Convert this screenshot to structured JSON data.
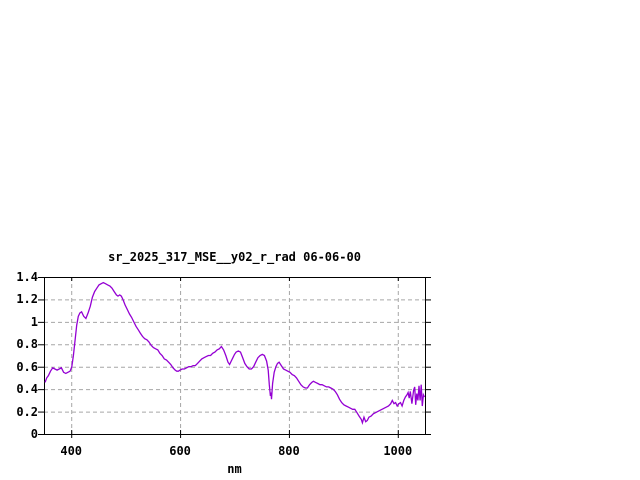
{
  "chart": {
    "title": "sr_2025_317_MSE__y02_r_rad 06-06-00",
    "xlabel": "nm",
    "colors": {
      "line": "#9400d3",
      "grid": "#a6a6a6",
      "border": "#000000",
      "background": "#ffffff"
    }
  },
  "chart_data": {
    "type": "line",
    "title": "sr_2025_317_MSE__y02_r_rad 06-06-00",
    "xlabel": "nm",
    "ylabel": "",
    "xlim": [
      350,
      1050
    ],
    "ylim": [
      0,
      1.4
    ],
    "xticks": [
      400,
      600,
      800,
      1000
    ],
    "xtick_labels": [
      "400",
      "600",
      "800",
      "1000"
    ],
    "yticks": [
      0,
      0.2,
      0.4,
      0.6,
      0.8,
      1.0,
      1.2,
      1.4
    ],
    "ytick_labels": [
      "0",
      "0.2",
      "0.4",
      "0.6",
      "0.8",
      "1",
      "1.2",
      "1.4"
    ],
    "grid": true,
    "legend": false,
    "line_color": "#9400d3",
    "points": [
      [
        352,
        0.46
      ],
      [
        355,
        0.5
      ],
      [
        358,
        0.52
      ],
      [
        362,
        0.56
      ],
      [
        366,
        0.59
      ],
      [
        370,
        0.58
      ],
      [
        374,
        0.57
      ],
      [
        378,
        0.58
      ],
      [
        382,
        0.59
      ],
      [
        386,
        0.55
      ],
      [
        390,
        0.54
      ],
      [
        394,
        0.55
      ],
      [
        398,
        0.56
      ],
      [
        401,
        0.6
      ],
      [
        404,
        0.7
      ],
      [
        407,
        0.83
      ],
      [
        410,
        0.97
      ],
      [
        413,
        1.05
      ],
      [
        416,
        1.08
      ],
      [
        419,
        1.09
      ],
      [
        423,
        1.05
      ],
      [
        427,
        1.03
      ],
      [
        431,
        1.08
      ],
      [
        435,
        1.14
      ],
      [
        439,
        1.22
      ],
      [
        443,
        1.27
      ],
      [
        447,
        1.3
      ],
      [
        451,
        1.33
      ],
      [
        455,
        1.34
      ],
      [
        459,
        1.35
      ],
      [
        463,
        1.34
      ],
      [
        467,
        1.33
      ],
      [
        471,
        1.32
      ],
      [
        475,
        1.3
      ],
      [
        479,
        1.27
      ],
      [
        483,
        1.24
      ],
      [
        486,
        1.23
      ],
      [
        489,
        1.24
      ],
      [
        492,
        1.23
      ],
      [
        495,
        1.2
      ],
      [
        499,
        1.15
      ],
      [
        503,
        1.11
      ],
      [
        507,
        1.07
      ],
      [
        511,
        1.04
      ],
      [
        515,
        1.0
      ],
      [
        519,
        0.96
      ],
      [
        523,
        0.93
      ],
      [
        527,
        0.9
      ],
      [
        531,
        0.87
      ],
      [
        535,
        0.85
      ],
      [
        539,
        0.84
      ],
      [
        543,
        0.82
      ],
      [
        547,
        0.79
      ],
      [
        551,
        0.77
      ],
      [
        555,
        0.76
      ],
      [
        559,
        0.75
      ],
      [
        563,
        0.72
      ],
      [
        567,
        0.7
      ],
      [
        571,
        0.67
      ],
      [
        575,
        0.66
      ],
      [
        579,
        0.64
      ],
      [
        583,
        0.62
      ],
      [
        587,
        0.59
      ],
      [
        591,
        0.57
      ],
      [
        594,
        0.56
      ],
      [
        597,
        0.56
      ],
      [
        600,
        0.57
      ],
      [
        604,
        0.58
      ],
      [
        608,
        0.58
      ],
      [
        612,
        0.59
      ],
      [
        616,
        0.6
      ],
      [
        620,
        0.6
      ],
      [
        624,
        0.61
      ],
      [
        628,
        0.61
      ],
      [
        632,
        0.63
      ],
      [
        636,
        0.65
      ],
      [
        640,
        0.67
      ],
      [
        644,
        0.68
      ],
      [
        648,
        0.69
      ],
      [
        652,
        0.7
      ],
      [
        656,
        0.7
      ],
      [
        660,
        0.72
      ],
      [
        664,
        0.73
      ],
      [
        668,
        0.75
      ],
      [
        672,
        0.76
      ],
      [
        676,
        0.78
      ],
      [
        680,
        0.75
      ],
      [
        684,
        0.7
      ],
      [
        688,
        0.64
      ],
      [
        691,
        0.62
      ],
      [
        694,
        0.65
      ],
      [
        697,
        0.68
      ],
      [
        700,
        0.71
      ],
      [
        703,
        0.73
      ],
      [
        707,
        0.74
      ],
      [
        711,
        0.73
      ],
      [
        715,
        0.68
      ],
      [
        719,
        0.63
      ],
      [
        723,
        0.6
      ],
      [
        727,
        0.58
      ],
      [
        731,
        0.58
      ],
      [
        735,
        0.6
      ],
      [
        739,
        0.64
      ],
      [
        743,
        0.68
      ],
      [
        747,
        0.7
      ],
      [
        751,
        0.71
      ],
      [
        755,
        0.7
      ],
      [
        759,
        0.65
      ],
      [
        762,
        0.57
      ],
      [
        764,
        0.44
      ],
      [
        766,
        0.34
      ],
      [
        767,
        0.37
      ],
      [
        768,
        0.31
      ],
      [
        770,
        0.45
      ],
      [
        773,
        0.55
      ],
      [
        776,
        0.6
      ],
      [
        779,
        0.63
      ],
      [
        782,
        0.64
      ],
      [
        786,
        0.61
      ],
      [
        790,
        0.58
      ],
      [
        794,
        0.57
      ],
      [
        798,
        0.56
      ],
      [
        802,
        0.55
      ],
      [
        806,
        0.53
      ],
      [
        810,
        0.52
      ],
      [
        814,
        0.5
      ],
      [
        818,
        0.47
      ],
      [
        822,
        0.44
      ],
      [
        826,
        0.42
      ],
      [
        830,
        0.41
      ],
      [
        834,
        0.41
      ],
      [
        838,
        0.44
      ],
      [
        842,
        0.46
      ],
      [
        845,
        0.47
      ],
      [
        849,
        0.46
      ],
      [
        853,
        0.45
      ],
      [
        857,
        0.44
      ],
      [
        861,
        0.44
      ],
      [
        865,
        0.43
      ],
      [
        869,
        0.42
      ],
      [
        873,
        0.42
      ],
      [
        877,
        0.41
      ],
      [
        881,
        0.4
      ],
      [
        885,
        0.38
      ],
      [
        889,
        0.35
      ],
      [
        893,
        0.31
      ],
      [
        897,
        0.28
      ],
      [
        901,
        0.26
      ],
      [
        905,
        0.25
      ],
      [
        909,
        0.24
      ],
      [
        913,
        0.23
      ],
      [
        917,
        0.22
      ],
      [
        921,
        0.22
      ],
      [
        925,
        0.19
      ],
      [
        929,
        0.16
      ],
      [
        933,
        0.13
      ],
      [
        935,
        0.1
      ],
      [
        938,
        0.15
      ],
      [
        941,
        0.11
      ],
      [
        944,
        0.12
      ],
      [
        947,
        0.15
      ],
      [
        951,
        0.16
      ],
      [
        955,
        0.18
      ],
      [
        959,
        0.19
      ],
      [
        963,
        0.2
      ],
      [
        967,
        0.21
      ],
      [
        971,
        0.22
      ],
      [
        975,
        0.23
      ],
      [
        979,
        0.24
      ],
      [
        983,
        0.25
      ],
      [
        987,
        0.27
      ],
      [
        990,
        0.3
      ],
      [
        993,
        0.27
      ],
      [
        996,
        0.28
      ],
      [
        999,
        0.25
      ],
      [
        1002,
        0.27
      ],
      [
        1005,
        0.28
      ],
      [
        1008,
        0.25
      ],
      [
        1011,
        0.3
      ],
      [
        1014,
        0.33
      ],
      [
        1017,
        0.35
      ],
      [
        1019,
        0.37
      ],
      [
        1021,
        0.32
      ],
      [
        1023,
        0.38
      ],
      [
        1026,
        0.27
      ],
      [
        1029,
        0.39
      ],
      [
        1031,
        0.42
      ],
      [
        1033,
        0.26
      ],
      [
        1035,
        0.36
      ],
      [
        1037,
        0.3
      ],
      [
        1039,
        0.43
      ],
      [
        1041,
        0.3
      ],
      [
        1043,
        0.44
      ],
      [
        1045,
        0.25
      ],
      [
        1047,
        0.35
      ],
      [
        1049,
        0.33
      ]
    ]
  }
}
